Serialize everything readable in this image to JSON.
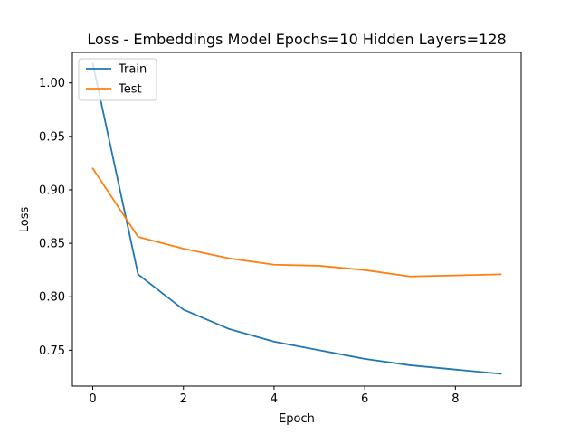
{
  "chart_data": {
    "type": "line",
    "title": "Loss - Embeddings Model Epochs=10 Hidden Layers=128",
    "xlabel": "Epoch",
    "ylabel": "Loss",
    "xlim": [
      -0.45,
      9.45
    ],
    "ylim": [
      0.7165,
      1.0285
    ],
    "xticks": [
      0,
      2,
      4,
      6,
      8
    ],
    "yticks": [
      0.75,
      0.8,
      0.85,
      0.9,
      0.95,
      1.0
    ],
    "grid": false,
    "legend_position": "upper-left",
    "x": [
      0,
      1,
      2,
      3,
      4,
      5,
      6,
      7,
      8,
      9
    ],
    "series": [
      {
        "name": "Train",
        "color": "#1f77b4",
        "values": [
          1.018,
          0.821,
          0.788,
          0.77,
          0.758,
          0.75,
          0.742,
          0.736,
          0.732,
          0.728
        ]
      },
      {
        "name": "Test",
        "color": "#ff7f0e",
        "values": [
          0.92,
          0.856,
          0.845,
          0.836,
          0.83,
          0.829,
          0.825,
          0.819,
          0.82,
          0.821
        ]
      }
    ]
  }
}
